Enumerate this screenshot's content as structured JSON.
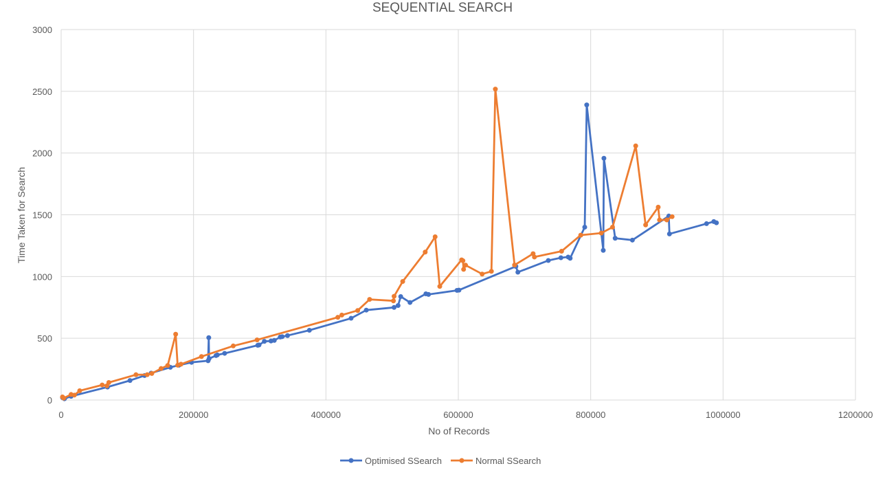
{
  "chart_data": {
    "type": "line",
    "title": "SEQUENTIAL SEARCH",
    "xlabel": "No of Records",
    "ylabel": "Time Taken for Search",
    "xlim": [
      0,
      1200000
    ],
    "ylim": [
      0,
      3000
    ],
    "x_ticks": [
      0,
      200000,
      400000,
      600000,
      800000,
      1000000,
      1200000
    ],
    "y_ticks": [
      0,
      500,
      1000,
      1500,
      2000,
      2500,
      3000
    ],
    "x_tick_labels": [
      "0",
      "200000",
      "400000",
      "600000",
      "800000",
      "1000000",
      "1200000"
    ],
    "y_tick_labels": [
      "0",
      "500",
      "1000",
      "1500",
      "2000",
      "2500",
      "3000"
    ],
    "grid": true,
    "legend_position": "bottom",
    "series": [
      {
        "name": "Optimised SSearch",
        "color": "#4472c4",
        "points": [
          [
            2000,
            20
          ],
          [
            5000,
            10
          ],
          [
            15000,
            30
          ],
          [
            70000,
            105
          ],
          [
            104000,
            158
          ],
          [
            126000,
            198
          ],
          [
            136000,
            218
          ],
          [
            165000,
            265
          ],
          [
            178000,
            282
          ],
          [
            197000,
            305
          ],
          [
            222000,
            318
          ],
          [
            223000,
            505
          ],
          [
            223500,
            335
          ],
          [
            234000,
            360
          ],
          [
            236000,
            365
          ],
          [
            247000,
            378
          ],
          [
            297000,
            443
          ],
          [
            299000,
            446
          ],
          [
            307000,
            475
          ],
          [
            317000,
            478
          ],
          [
            322000,
            483
          ],
          [
            331000,
            510
          ],
          [
            334000,
            513
          ],
          [
            342000,
            522
          ],
          [
            375000,
            565
          ],
          [
            438000,
            662
          ],
          [
            461000,
            728
          ],
          [
            503000,
            750
          ],
          [
            509000,
            765
          ],
          [
            513000,
            838
          ],
          [
            527000,
            790
          ],
          [
            551000,
            860
          ],
          [
            555000,
            855
          ],
          [
            598000,
            888
          ],
          [
            601000,
            890
          ],
          [
            687000,
            1082
          ],
          [
            690000,
            1035
          ],
          [
            736000,
            1130
          ],
          [
            755000,
            1152
          ],
          [
            766000,
            1158
          ],
          [
            769000,
            1148
          ],
          [
            791000,
            1400
          ],
          [
            794000,
            2390
          ],
          [
            819000,
            1212
          ],
          [
            820000,
            1958
          ],
          [
            837000,
            1310
          ],
          [
            863000,
            1295
          ],
          [
            918000,
            1490
          ],
          [
            919000,
            1345
          ],
          [
            975000,
            1428
          ],
          [
            986000,
            1445
          ],
          [
            990000,
            1435
          ]
        ]
      },
      {
        "name": "Normal SSearch",
        "color": "#ed7d31",
        "points": [
          [
            2000,
            25
          ],
          [
            4000,
            15
          ],
          [
            15000,
            45
          ],
          [
            20000,
            40
          ],
          [
            28000,
            75
          ],
          [
            62000,
            122
          ],
          [
            69000,
            115
          ],
          [
            72000,
            142
          ],
          [
            113000,
            205
          ],
          [
            130000,
            205
          ],
          [
            137000,
            215
          ],
          [
            151000,
            255
          ],
          [
            161000,
            280
          ],
          [
            173000,
            533
          ],
          [
            176000,
            282
          ],
          [
            181000,
            290
          ],
          [
            212000,
            352
          ],
          [
            260000,
            438
          ],
          [
            296000,
            487
          ],
          [
            418000,
            670
          ],
          [
            424000,
            688
          ],
          [
            448000,
            725
          ],
          [
            466000,
            815
          ],
          [
            502000,
            803
          ],
          [
            503000,
            840
          ],
          [
            516000,
            960
          ],
          [
            550000,
            1198
          ],
          [
            565000,
            1322
          ],
          [
            572000,
            920
          ],
          [
            605000,
            1135
          ],
          [
            607000,
            1128
          ],
          [
            608000,
            1058
          ],
          [
            611000,
            1092
          ],
          [
            636000,
            1020
          ],
          [
            650000,
            1042
          ],
          [
            656000,
            2518
          ],
          [
            685000,
            1093
          ],
          [
            713000,
            1185
          ],
          [
            715000,
            1158
          ],
          [
            756000,
            1205
          ],
          [
            785000,
            1335
          ],
          [
            816000,
            1352
          ],
          [
            833000,
            1400
          ],
          [
            868000,
            2058
          ],
          [
            883000,
            1418
          ],
          [
            902000,
            1562
          ],
          [
            904000,
            1458
          ],
          [
            915000,
            1458
          ],
          [
            923000,
            1485
          ]
        ]
      }
    ]
  }
}
